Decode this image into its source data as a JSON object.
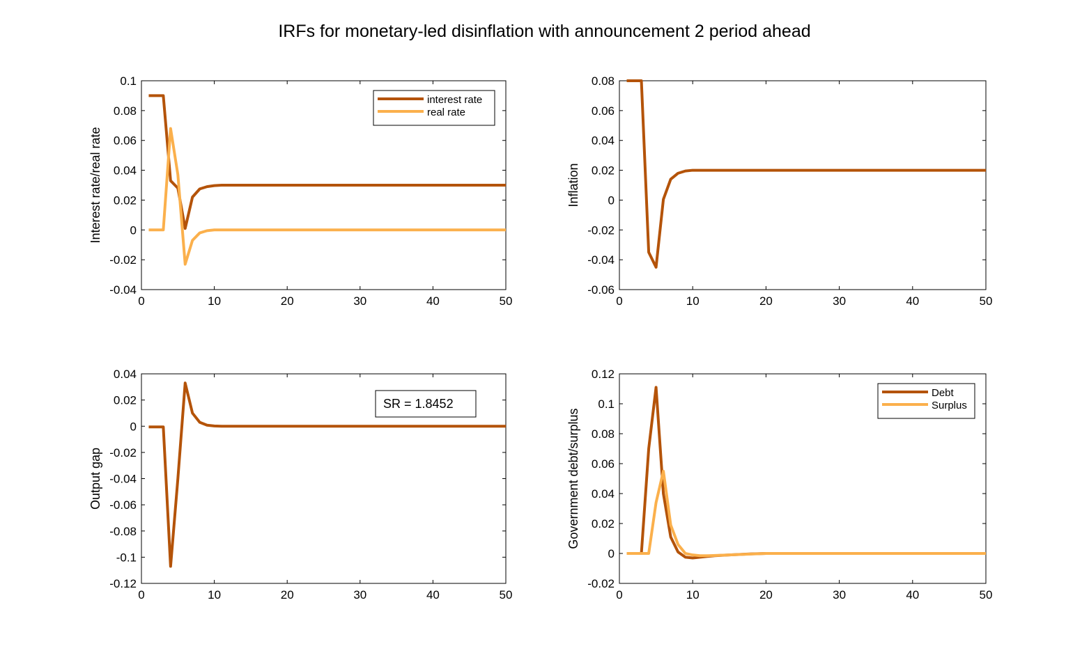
{
  "figure": {
    "title": "IRFs for monetary-led disinflation with announcement 2 period ahead"
  },
  "colors": {
    "dark": "#B45309",
    "light": "#FBB04C",
    "axis": "#000000",
    "background": "#ffffff"
  },
  "chart_data": [
    {
      "id": "interest",
      "type": "line",
      "title": "",
      "xlabel": "",
      "ylabel": "Interest rate/real rate",
      "xlim": [
        0,
        50
      ],
      "ylim": [
        -0.04,
        0.1
      ],
      "xticks": [
        0,
        10,
        20,
        30,
        40,
        50
      ],
      "yticks": [
        -0.04,
        -0.02,
        0,
        0.02,
        0.04,
        0.06,
        0.08,
        0.1
      ],
      "ytick_labels": [
        "-0.04",
        "-0.02",
        "0",
        "0.02",
        "0.04",
        "0.06",
        "0.08",
        "0.1"
      ],
      "grid": false,
      "legend": {
        "position": "top-right"
      },
      "annotation": "",
      "series": [
        {
          "name": "interest rate",
          "color_key": "dark",
          "x": [
            1,
            2,
            3,
            4,
            5,
            6,
            7,
            8,
            9,
            10,
            11,
            12,
            13,
            15,
            20,
            30,
            40,
            50
          ],
          "y": [
            0.09,
            0.09,
            0.09,
            0.033,
            0.028,
            0.001,
            0.022,
            0.0275,
            0.029,
            0.0297,
            0.03,
            0.03,
            0.03,
            0.03,
            0.03,
            0.03,
            0.03,
            0.03
          ]
        },
        {
          "name": "real rate",
          "color_key": "light",
          "x": [
            1,
            2,
            3,
            4,
            5,
            6,
            7,
            8,
            9,
            10,
            11,
            12,
            15,
            20,
            30,
            40,
            50
          ],
          "y": [
            0,
            0,
            0,
            0.068,
            0.037,
            -0.023,
            -0.007,
            -0.002,
            -0.0005,
            0,
            0,
            0,
            0,
            0,
            0,
            0,
            0
          ]
        }
      ]
    },
    {
      "id": "inflation",
      "type": "line",
      "title": "",
      "xlabel": "",
      "ylabel": "Inflation",
      "xlim": [
        0,
        50
      ],
      "ylim": [
        -0.06,
        0.08
      ],
      "xticks": [
        0,
        10,
        20,
        30,
        40,
        50
      ],
      "yticks": [
        -0.06,
        -0.04,
        -0.02,
        0,
        0.02,
        0.04,
        0.06,
        0.08
      ],
      "ytick_labels": [
        "-0.06",
        "-0.04",
        "-0.02",
        "0",
        "0.02",
        "0.04",
        "0.06",
        "0.08"
      ],
      "grid": false,
      "legend": null,
      "annotation": "",
      "series": [
        {
          "name": "",
          "color_key": "dark",
          "x": [
            1,
            2,
            3,
            4,
            5,
            6,
            7,
            8,
            9,
            10,
            11,
            12,
            15,
            20,
            30,
            40,
            50
          ],
          "y": [
            0.08,
            0.08,
            0.08,
            -0.035,
            -0.045,
            0.0005,
            0.014,
            0.018,
            0.0195,
            0.02,
            0.02,
            0.02,
            0.02,
            0.02,
            0.02,
            0.02,
            0.02
          ]
        }
      ]
    },
    {
      "id": "output",
      "type": "line",
      "title": "",
      "xlabel": "",
      "ylabel": "Output gap",
      "xlim": [
        0,
        50
      ],
      "ylim": [
        -0.12,
        0.04
      ],
      "xticks": [
        0,
        10,
        20,
        30,
        40,
        50
      ],
      "yticks": [
        -0.12,
        -0.1,
        -0.08,
        -0.06,
        -0.04,
        -0.02,
        0,
        0.02,
        0.04
      ],
      "ytick_labels": [
        "-0.12",
        "-0.1",
        "-0.08",
        "-0.06",
        "-0.04",
        "-0.02",
        "0",
        "0.02",
        "0.04"
      ],
      "grid": false,
      "legend": null,
      "annotation": "SR = 1.8452",
      "series": [
        {
          "name": "",
          "color_key": "dark",
          "x": [
            1,
            2,
            3,
            4,
            5,
            6,
            7,
            8,
            9,
            10,
            11,
            12,
            15,
            20,
            30,
            40,
            50
          ],
          "y": [
            -0.0005,
            -0.0005,
            -0.0005,
            -0.107,
            -0.04,
            0.033,
            0.01,
            0.003,
            0.0008,
            0.0002,
            0,
            0,
            0,
            0,
            0,
            0,
            0
          ]
        }
      ]
    },
    {
      "id": "debt",
      "type": "line",
      "title": "",
      "xlabel": "",
      "ylabel": "Government debt/surplus",
      "xlim": [
        0,
        50
      ],
      "ylim": [
        -0.02,
        0.12
      ],
      "xticks": [
        0,
        10,
        20,
        30,
        40,
        50
      ],
      "yticks": [
        -0.02,
        0,
        0.02,
        0.04,
        0.06,
        0.08,
        0.1,
        0.12
      ],
      "ytick_labels": [
        "-0.02",
        "0",
        "0.02",
        "0.04",
        "0.06",
        "0.08",
        "0.1",
        "0.12"
      ],
      "grid": false,
      "legend": {
        "position": "top-right"
      },
      "annotation": "",
      "series": [
        {
          "name": "Debt",
          "color_key": "dark",
          "x": [
            1,
            2,
            3,
            4,
            5,
            6,
            7,
            8,
            9,
            10,
            11,
            12,
            13,
            15,
            18,
            20,
            25,
            30,
            40,
            50
          ],
          "y": [
            0,
            0,
            0,
            0.07,
            0.111,
            0.04,
            0.011,
            0.001,
            -0.0025,
            -0.003,
            -0.0025,
            -0.002,
            -0.0015,
            -0.001,
            -0.0003,
            0,
            0,
            0,
            0,
            0
          ]
        },
        {
          "name": "Surplus",
          "color_key": "light",
          "x": [
            1,
            2,
            3,
            4,
            5,
            6,
            7,
            8,
            9,
            10,
            11,
            12,
            15,
            20,
            25,
            30,
            40,
            50
          ],
          "y": [
            0,
            0,
            0,
            0,
            0.034,
            0.055,
            0.019,
            0.006,
            0,
            -0.001,
            -0.0015,
            -0.0015,
            -0.001,
            0,
            0,
            0,
            0,
            0
          ]
        }
      ]
    }
  ]
}
